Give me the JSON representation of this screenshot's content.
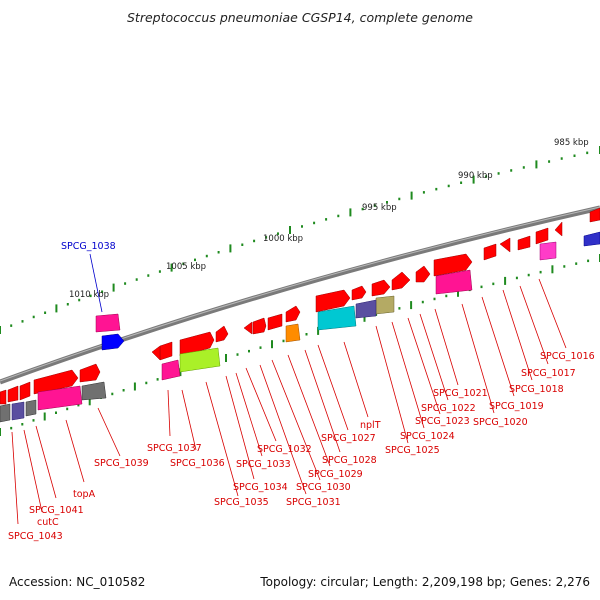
{
  "header": {
    "title": "Streptococcus pneumoniae CGSP14, complete genome"
  },
  "footer": {
    "accession": "Accession: NC_010582",
    "summary": "Topology: circular; Length: 2,209,198 bp; Genes: 2,276"
  },
  "colors": {
    "backbone": "#7a7a7a",
    "tick_dot": "#1f8a1f",
    "gene_arrow": "#ff0000",
    "label_red": "#d80000",
    "label_blue": "#0000cc",
    "highlight_gene": "#0000ff",
    "cog_magenta": "#ff1493",
    "cog_cyan": "#00c8d2",
    "cog_lime": "#aaf028",
    "cog_orange": "#ff8c00",
    "cog_gray": "#707070",
    "cog_purple": "#5a4fa0",
    "cog_khaki": "#b4aa64",
    "cog_pink": "#ff3cc8"
  },
  "ticks": [
    "985 kbp",
    "990 kbp",
    "995 kbp",
    "1000 kbp",
    "1005 kbp",
    "1010 kbp"
  ],
  "highlighted_gene": "SPCG_1038",
  "gene_labels": [
    "SPCG_1016",
    "SPCG_1017",
    "SPCG_1018",
    "SPCG_1019",
    "SPCG_1020",
    "SPCG_1021",
    "SPCG_1022",
    "SPCG_1023",
    "SPCG_1024",
    "SPCG_1025",
    "nplT",
    "SPCG_1027",
    "SPCG_1028",
    "SPCG_1029",
    "SPCG_1030",
    "SPCG_1031",
    "SPCG_1032",
    "SPCG_1033",
    "SPCG_1034",
    "SPCG_1035",
    "SPCG_1036",
    "SPCG_1037",
    "SPCG_1039",
    "topA",
    "SPCG_1041",
    "cutC",
    "SPCG_1043"
  ]
}
